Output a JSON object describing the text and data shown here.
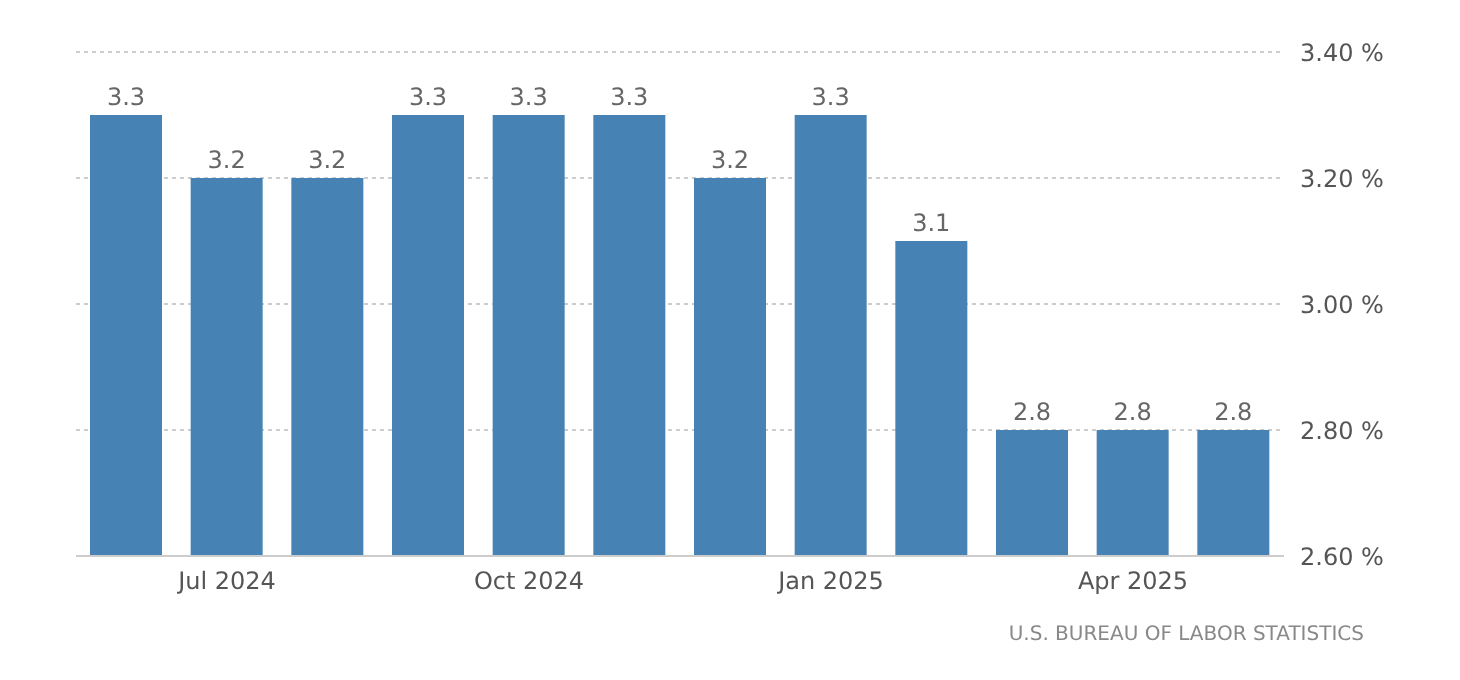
{
  "chart_data": {
    "type": "bar",
    "categories": [
      null,
      "Jul 2024",
      null,
      null,
      "Oct 2024",
      null,
      null,
      "Jan 2025",
      null,
      null,
      "Apr 2025",
      null
    ],
    "values": [
      3.3,
      3.2,
      3.2,
      3.3,
      3.3,
      3.3,
      3.2,
      3.3,
      3.1,
      2.8,
      2.8,
      2.8
    ],
    "color": "#4682b4",
    "ylim": [
      2.6,
      3.4
    ],
    "yticks": [
      {
        "value": 2.6,
        "label": "2.60 %"
      },
      {
        "value": 2.8,
        "label": "2.80 %"
      },
      {
        "value": 3.0,
        "label": "3.00 %"
      },
      {
        "value": 3.2,
        "label": "3.20 %"
      },
      {
        "value": 3.4,
        "label": "3.40 %"
      }
    ],
    "grid": "y",
    "data_labels": true,
    "annotations": [
      "U.S. BUREAU OF LABOR STATISTICS"
    ]
  }
}
